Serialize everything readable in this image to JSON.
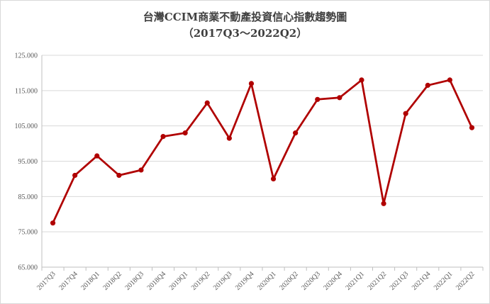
{
  "chart_data": {
    "type": "line",
    "title": "台灣CCIM商業不動產投資信心指數趨勢圖",
    "subtitle": "（2017Q3～2022Q2）",
    "xlabel": "",
    "ylabel": "",
    "ylim": [
      65,
      125
    ],
    "yticks": [
      "65.000",
      "75.000",
      "85.000",
      "95.000",
      "105.000",
      "115.000",
      "125.000"
    ],
    "grid": true,
    "categories": [
      "2017Q3",
      "2017Q4",
      "2018Q1",
      "2018Q2",
      "2018Q3",
      "2018Q4",
      "2019Q1",
      "2019Q2",
      "2019Q3",
      "2019Q4",
      "2020Q1",
      "2020Q2",
      "2020Q3",
      "2020Q4",
      "2021Q1",
      "2021Q2",
      "2021Q3",
      "2021Q4",
      "2022Q1",
      "2022Q2"
    ],
    "series": [
      {
        "values": [
          77.5,
          91.0,
          96.5,
          91.0,
          92.5,
          102.0,
          103.0,
          111.5,
          101.5,
          117.0,
          90.0,
          103.0,
          112.5,
          113.0,
          118.0,
          83.0,
          108.5,
          116.5,
          118.0,
          104.5
        ],
        "color": "#b00000"
      }
    ]
  }
}
